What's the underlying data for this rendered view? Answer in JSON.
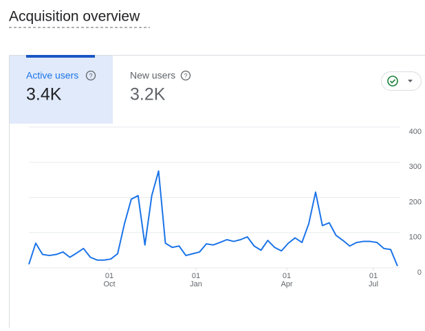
{
  "header": {
    "title": "Acquisition overview"
  },
  "tabs": [
    {
      "label": "Active users",
      "value": "3.4K"
    },
    {
      "label": "New users",
      "value": "3.2K"
    }
  ],
  "chart_data": {
    "type": "line",
    "categories": [
      null,
      null,
      null,
      null,
      null,
      null,
      null,
      null,
      null,
      null,
      null,
      null,
      null,
      null,
      null,
      null,
      null,
      null,
      null,
      null,
      null,
      null,
      null,
      null,
      null,
      null,
      null,
      null,
      null,
      null,
      null,
      null,
      null,
      null,
      null,
      null,
      null,
      null,
      null,
      null,
      null,
      null,
      null,
      null,
      null,
      null,
      null,
      null,
      null,
      null,
      null,
      null,
      null,
      null,
      null
    ],
    "values": [
      10,
      70,
      38,
      35,
      38,
      45,
      30,
      42,
      55,
      30,
      22,
      22,
      25,
      40,
      125,
      195,
      205,
      65,
      205,
      275,
      70,
      58,
      62,
      35,
      40,
      45,
      68,
      65,
      72,
      80,
      75,
      80,
      88,
      62,
      50,
      78,
      58,
      48,
      70,
      85,
      72,
      125,
      215,
      120,
      128,
      92,
      78,
      62,
      72,
      75,
      75,
      72,
      55,
      52,
      5
    ],
    "color": "#1a73e8",
    "ylim": [
      0,
      400
    ],
    "yticks": [
      0,
      100,
      200,
      300,
      400
    ],
    "grid": true,
    "xticks": [
      {
        "value": 11.79,
        "label": [
          "01",
          "Oct"
        ]
      },
      {
        "value": 24.48,
        "label": [
          "01",
          "Jan"
        ]
      },
      {
        "value": 37.78,
        "label": [
          "01",
          "Apr"
        ]
      },
      {
        "value": 50.48,
        "label": [
          "01",
          "Jul"
        ]
      }
    ]
  }
}
